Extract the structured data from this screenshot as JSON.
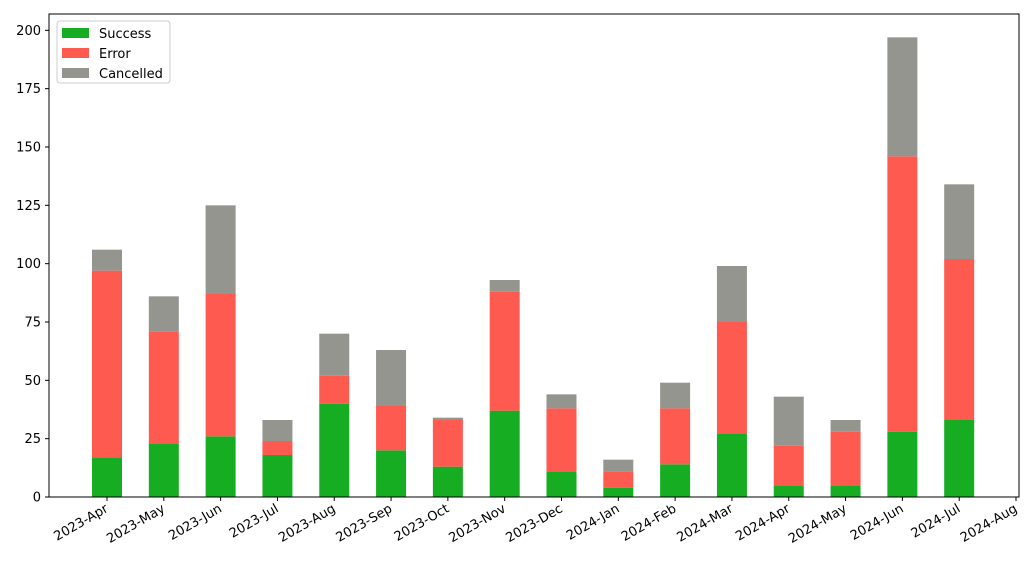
{
  "chart_data": {
    "type": "bar",
    "stacked": true,
    "title": "",
    "xlabel": "",
    "ylabel": "",
    "categories": [
      "2023-Apr",
      "2023-May",
      "2023-Jun",
      "2023-Jul",
      "2023-Aug",
      "2023-Sep",
      "2023-Oct",
      "2023-Nov",
      "2023-Dec",
      "2024-Jan",
      "2024-Feb",
      "2024-Mar",
      "2024-Apr",
      "2024-May",
      "2024-Jun",
      "2024-Jul",
      "2024-Aug"
    ],
    "series": [
      {
        "name": "Success",
        "color": "#16ad22",
        "values": [
          17,
          23,
          26,
          18,
          40,
          20,
          13,
          37,
          11,
          4,
          14,
          27,
          5,
          5,
          28,
          33,
          0
        ]
      },
      {
        "name": "Error",
        "color": "#ff5a50",
        "values": [
          80,
          48,
          61,
          6,
          12,
          19,
          20,
          51,
          27,
          7,
          24,
          48,
          17,
          23,
          118,
          69,
          0
        ]
      },
      {
        "name": "Cancelled",
        "color": "#94958f",
        "values": [
          9,
          15,
          38,
          9,
          18,
          24,
          1,
          5,
          6,
          5,
          11,
          24,
          21,
          5,
          51,
          32,
          0
        ]
      }
    ],
    "ylim": [
      0,
      207
    ],
    "yticks": [
      0,
      25,
      50,
      75,
      100,
      125,
      150,
      175,
      200
    ],
    "grid": false,
    "legend": "top-left"
  }
}
